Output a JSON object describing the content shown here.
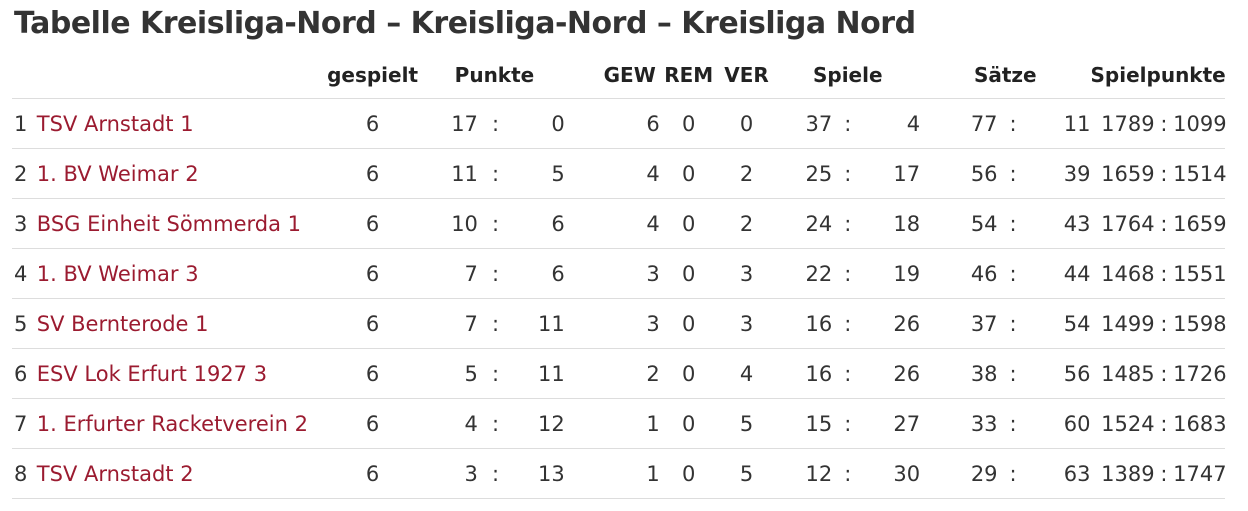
{
  "title": "Tabelle Kreisliga-Nord – Kreisliga-Nord – Kreisliga Nord",
  "headers": {
    "rank": "",
    "team": "",
    "played": "gespielt",
    "points": "Punkte",
    "won": "GEW",
    "drawn": "REM",
    "lost": "VER",
    "games": "Spiele",
    "sets": "Sätze",
    "matchpoints": "Spielpunkte"
  },
  "separator": ":",
  "rows": [
    {
      "rank": "1",
      "team": "TSV Arnstadt 1",
      "played": "6",
      "points_for": "17",
      "points_against": "0",
      "won": "6",
      "drawn": "0",
      "lost": "0",
      "games_for": "37",
      "games_against": "4",
      "sets_for": "77",
      "sets_against": "11",
      "mp_for": "1789",
      "mp_against": "1099"
    },
    {
      "rank": "2",
      "team": "1. BV Weimar 2",
      "played": "6",
      "points_for": "11",
      "points_against": "5",
      "won": "4",
      "drawn": "0",
      "lost": "2",
      "games_for": "25",
      "games_against": "17",
      "sets_for": "56",
      "sets_against": "39",
      "mp_for": "1659",
      "mp_against": "1514"
    },
    {
      "rank": "3",
      "team": "BSG Einheit Sömmerda 1",
      "played": "6",
      "points_for": "10",
      "points_against": "6",
      "won": "4",
      "drawn": "0",
      "lost": "2",
      "games_for": "24",
      "games_against": "18",
      "sets_for": "54",
      "sets_against": "43",
      "mp_for": "1764",
      "mp_against": "1659"
    },
    {
      "rank": "4",
      "team": "1. BV Weimar 3",
      "played": "6",
      "points_for": "7",
      "points_against": "6",
      "won": "3",
      "drawn": "0",
      "lost": "3",
      "games_for": "22",
      "games_against": "19",
      "sets_for": "46",
      "sets_against": "44",
      "mp_for": "1468",
      "mp_against": "1551"
    },
    {
      "rank": "5",
      "team": "SV Bernterode 1",
      "played": "6",
      "points_for": "7",
      "points_against": "11",
      "won": "3",
      "drawn": "0",
      "lost": "3",
      "games_for": "16",
      "games_against": "26",
      "sets_for": "37",
      "sets_against": "54",
      "mp_for": "1499",
      "mp_against": "1598"
    },
    {
      "rank": "6",
      "team": "ESV Lok Erfurt 1927 3",
      "played": "6",
      "points_for": "5",
      "points_against": "11",
      "won": "2",
      "drawn": "0",
      "lost": "4",
      "games_for": "16",
      "games_against": "26",
      "sets_for": "38",
      "sets_against": "56",
      "mp_for": "1485",
      "mp_against": "1726"
    },
    {
      "rank": "7",
      "team": "1. Erfurter Racketverein 2",
      "played": "6",
      "points_for": "4",
      "points_against": "12",
      "won": "1",
      "drawn": "0",
      "lost": "5",
      "games_for": "15",
      "games_against": "27",
      "sets_for": "33",
      "sets_against": "60",
      "mp_for": "1524",
      "mp_against": "1683"
    },
    {
      "rank": "8",
      "team": "TSV Arnstadt 2",
      "played": "6",
      "points_for": "3",
      "points_against": "13",
      "won": "1",
      "drawn": "0",
      "lost": "5",
      "games_for": "12",
      "games_against": "30",
      "sets_for": "29",
      "sets_against": "63",
      "mp_for": "1389",
      "mp_against": "1747"
    }
  ],
  "colors": {
    "team_link": "#9b1b30",
    "row_divider": "#dddddd",
    "text": "#333333"
  }
}
